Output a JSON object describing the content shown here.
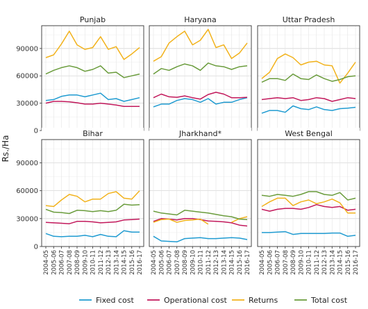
{
  "figure": {
    "ylabel": "Rs./Ha",
    "legend": [
      {
        "name": "Fixed cost",
        "color": "#1f9bd1"
      },
      {
        "name": "Operational cost",
        "color": "#c2185b"
      },
      {
        "name": "Returns",
        "color": "#f2b21b"
      },
      {
        "name": "Total cost",
        "color": "#6a9c3c"
      }
    ]
  },
  "chart_data": {
    "type": "line",
    "layout": "small-multiples 2x3",
    "legend_position": "bottom",
    "grid": true,
    "ylabel": "Rs./Ha",
    "ylim": [
      0,
      115000
    ],
    "yticks": [
      0,
      30000,
      60000,
      90000
    ],
    "x": [
      "2004-05",
      "2005-06",
      "2006-07",
      "2007-08",
      "2008-09",
      "2009-10",
      "2010-11",
      "2011-12",
      "2012-13",
      "2013-14",
      "2014-15",
      "2015-16",
      "2016-17"
    ],
    "panels": [
      {
        "title": "Punjab",
        "series": [
          {
            "name": "Fixed cost",
            "values": [
              33000,
              34000,
              37500,
              39000,
              39000,
              37000,
              39000,
              41000,
              34000,
              35000,
              32000,
              34000,
              36000
            ]
          },
          {
            "name": "Operational cost",
            "values": [
              30000,
              32000,
              32000,
              31500,
              30500,
              29000,
              29000,
              30000,
              29000,
              28000,
              26500,
              26500,
              26500
            ]
          },
          {
            "name": "Returns",
            "values": [
              80000,
              83000,
              95000,
              109000,
              94000,
              89000,
              91000,
              103000,
              89000,
              92000,
              78000,
              84000,
              91000
            ]
          },
          {
            "name": "Total cost",
            "values": [
              62000,
              66000,
              69000,
              71000,
              69000,
              65000,
              67000,
              71000,
              63000,
              64000,
              58000,
              60000,
              62000
            ]
          }
        ]
      },
      {
        "title": "Haryana",
        "series": [
          {
            "name": "Fixed cost",
            "values": [
              26000,
              29000,
              29000,
              33000,
              35000,
              34000,
              31000,
              35000,
              29000,
              31000,
              31000,
              34000,
              36000
            ]
          },
          {
            "name": "Operational cost",
            "values": [
              36000,
              40000,
              37000,
              36500,
              38000,
              36000,
              34500,
              39500,
              42000,
              40000,
              36000,
              36000,
              36500
            ]
          },
          {
            "name": "Returns",
            "values": [
              76000,
              81000,
              96000,
              103000,
              109000,
              94000,
              99000,
              111000,
              91000,
              94000,
              79000,
              85000,
              96000
            ]
          },
          {
            "name": "Total cost",
            "values": [
              62000,
              68000,
              66000,
              70000,
              73000,
              71000,
              66000,
              74000,
              71000,
              70000,
              67000,
              70000,
              71000
            ]
          }
        ]
      },
      {
        "title": "Uttar Pradesh",
        "series": [
          {
            "name": "Fixed cost",
            "values": [
              19000,
              22000,
              22000,
              20000,
              27000,
              24000,
              23000,
              26000,
              23000,
              22000,
              24000,
              24500,
              25500
            ]
          },
          {
            "name": "Operational cost",
            "values": [
              34000,
              35000,
              36000,
              35000,
              36000,
              33000,
              34000,
              36000,
              35000,
              32000,
              34000,
              36000,
              35000
            ]
          },
          {
            "name": "Returns",
            "values": [
              57000,
              64000,
              79000,
              84000,
              80000,
              72000,
              75000,
              76000,
              72000,
              71000,
              52000,
              63000,
              75000
            ]
          },
          {
            "name": "Total cost",
            "values": [
              53000,
              57000,
              57000,
              55000,
              62000,
              57000,
              56000,
              61000,
              57000,
              54000,
              56000,
              59000,
              60000
            ]
          }
        ]
      },
      {
        "title": "Bihar",
        "series": [
          {
            "name": "Fixed cost",
            "values": [
              14000,
              11000,
              10500,
              11000,
              11000,
              12000,
              10500,
              13000,
              11000,
              10500,
              17000,
              15500,
              15500
            ]
          },
          {
            "name": "Operational cost",
            "values": [
              26000,
              25500,
              25000,
              24500,
              27000,
              27000,
              26500,
              25500,
              26000,
              26500,
              28500,
              29000,
              29500
            ]
          },
          {
            "name": "Returns",
            "values": [
              44000,
              43000,
              50000,
              56000,
              54000,
              48000,
              51000,
              51000,
              57000,
              59000,
              52000,
              51000,
              60000
            ]
          },
          {
            "name": "Total cost",
            "values": [
              40000,
              37000,
              36500,
              35500,
              39000,
              38500,
              37500,
              38500,
              37500,
              39000,
              45500,
              44500,
              45000
            ]
          }
        ]
      },
      {
        "title": "Jharkhand*",
        "series": [
          {
            "name": "Fixed cost",
            "values": [
              11000,
              6000,
              5500,
              5000,
              8500,
              9000,
              9500,
              8500,
              8500,
              9000,
              9500,
              9000,
              7500
            ]
          },
          {
            "name": "Operational cost",
            "values": [
              27000,
              30000,
              29500,
              28500,
              30000,
              30000,
              29000,
              27500,
              27000,
              26500,
              25500,
              23000,
              22000
            ]
          },
          {
            "name": "Returns",
            "values": [
              26000,
              29000,
              29500,
              26000,
              28000,
              28500,
              29500,
              24000,
              null,
              null,
              26000,
              30000,
              32000
            ]
          },
          {
            "name": "Total cost",
            "values": [
              38000,
              36000,
              35000,
              34000,
              39000,
              38000,
              37000,
              36000,
              34500,
              33000,
              32000,
              29500,
              29000
            ]
          }
        ]
      },
      {
        "title": "West Bengal",
        "series": [
          {
            "name": "Fixed cost",
            "values": [
              15000,
              15000,
              15500,
              16000,
              13000,
              14000,
              14000,
              14000,
              14000,
              14500,
              14500,
              11000,
              12000
            ]
          },
          {
            "name": "Operational cost",
            "values": [
              40000,
              38000,
              40000,
              41000,
              41000,
              40000,
              42000,
              45000,
              43000,
              42000,
              43000,
              39000,
              40000
            ]
          },
          {
            "name": "Returns",
            "values": [
              43000,
              48000,
              52000,
              52000,
              44000,
              48000,
              50000,
              46000,
              48000,
              51000,
              47000,
              36000,
              36000
            ]
          },
          {
            "name": "Total cost",
            "values": [
              55000,
              54000,
              56000,
              55000,
              54000,
              56000,
              59000,
              59000,
              56000,
              55000,
              58000,
              50000,
              52000
            ]
          }
        ]
      }
    ]
  }
}
